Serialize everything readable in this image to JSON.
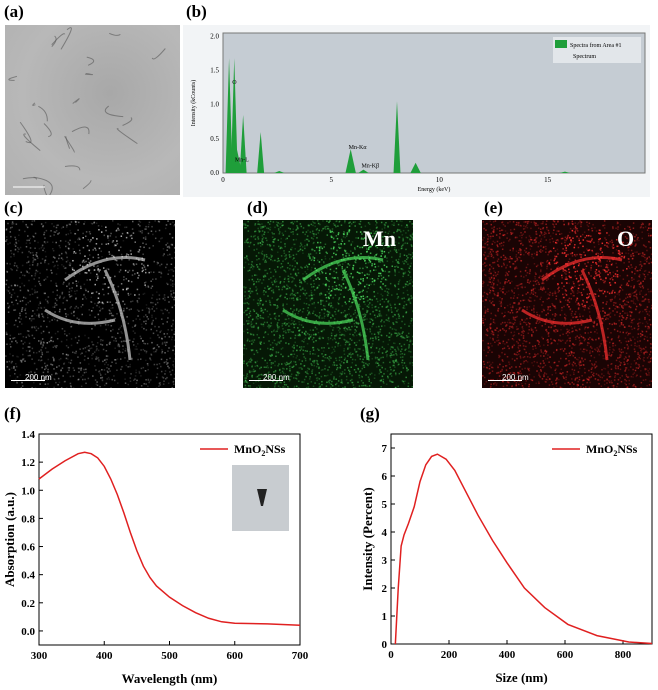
{
  "panels": {
    "a": "(a)",
    "b": "(b)",
    "c": "(c)",
    "d": "(d)",
    "e": "(e)",
    "f": "(f)",
    "g": "(g)"
  },
  "maps": {
    "d_element": "Mn",
    "e_element": "O",
    "scale": "200 nm"
  },
  "colors": {
    "eds_fill": "#1f9e3a",
    "eds_bg": "#c5ccd3",
    "curve": "#e02020",
    "mn_map": "#38c050",
    "o_map": "#d02020"
  },
  "chart_data": [
    {
      "type": "area",
      "panel": "b",
      "xlabel": "Energy (keV)",
      "ylabel": "Intensity (kCounts)",
      "xlim": [
        0,
        19.5
      ],
      "ylim": [
        0,
        2.05
      ],
      "xticks": [
        0,
        5,
        10,
        15
      ],
      "yticks": [
        "0.0",
        "0.5",
        "1.0",
        "1.5",
        "2.0"
      ],
      "legend": [
        "Spectra from Area #1",
        "Spectrum"
      ],
      "legend_position": "top-right",
      "peaks": [
        {
          "x": 0.28,
          "y": 1.68
        },
        {
          "x": 0.52,
          "y": 1.68
        },
        {
          "x": 0.64,
          "y": 0.35
        },
        {
          "x": 0.93,
          "y": 0.85
        },
        {
          "x": 1.74,
          "y": 0.6
        },
        {
          "x": 2.6,
          "y": 0.03
        },
        {
          "x": 5.9,
          "y": 0.35
        },
        {
          "x": 6.49,
          "y": 0.05
        },
        {
          "x": 8.04,
          "y": 1.05
        },
        {
          "x": 8.9,
          "y": 0.15
        },
        {
          "x": 15.8,
          "y": 0.02
        }
      ],
      "annotations": [
        {
          "text": "O",
          "x": 0.52,
          "y": 1.3
        },
        {
          "text": "Mn-L",
          "x": 0.64,
          "y": 0.17
        },
        {
          "text": "Mn-Kα",
          "x": 5.9,
          "y": 0.35
        },
        {
          "text": "Mn-Kβ",
          "x": 6.49,
          "y": 0.08
        }
      ]
    },
    {
      "type": "line",
      "panel": "f",
      "xlabel": "Wavelength (nm)",
      "ylabel": "Absorption (a.u.)",
      "xlim": [
        300,
        700
      ],
      "ylim": [
        -0.1,
        1.4
      ],
      "xticks": [
        "300",
        "400",
        "500",
        "600",
        "700"
      ],
      "yticks": [
        "0.0",
        "0.2",
        "0.4",
        "0.6",
        "0.8",
        "1.0",
        "1.2",
        "1.4"
      ],
      "legend_position": "top-right",
      "series": [
        {
          "name": "MnO2NSs",
          "x": [
            300,
            320,
            340,
            360,
            370,
            380,
            390,
            400,
            410,
            420,
            430,
            440,
            450,
            460,
            470,
            480,
            500,
            520,
            540,
            560,
            580,
            600,
            650,
            700
          ],
          "y": [
            1.08,
            1.15,
            1.21,
            1.26,
            1.27,
            1.26,
            1.23,
            1.17,
            1.08,
            0.97,
            0.84,
            0.7,
            0.57,
            0.46,
            0.38,
            0.32,
            0.24,
            0.18,
            0.13,
            0.09,
            0.065,
            0.055,
            0.05,
            0.04
          ]
        }
      ]
    },
    {
      "type": "line",
      "panel": "g",
      "xlabel": "Size (nm)",
      "ylabel": "Intensity (Percent)",
      "xlim": [
        0,
        900
      ],
      "ylim": [
        0,
        7.5
      ],
      "xticks": [
        "0",
        "200",
        "400",
        "600",
        "800"
      ],
      "yticks": [
        "0",
        "1",
        "2",
        "3",
        "4",
        "5",
        "6",
        "7"
      ],
      "legend_position": "top-right",
      "series": [
        {
          "name": "MnO2NSs",
          "x": [
            15,
            25,
            35,
            45,
            60,
            80,
            100,
            120,
            140,
            160,
            190,
            220,
            260,
            300,
            350,
            400,
            460,
            530,
            610,
            710,
            820,
            900
          ],
          "y": [
            0,
            2.0,
            3.5,
            3.9,
            4.3,
            4.9,
            5.8,
            6.4,
            6.7,
            6.78,
            6.6,
            6.2,
            5.4,
            4.6,
            3.7,
            2.9,
            2.0,
            1.3,
            0.7,
            0.3,
            0.07,
            0.02
          ]
        }
      ]
    }
  ]
}
